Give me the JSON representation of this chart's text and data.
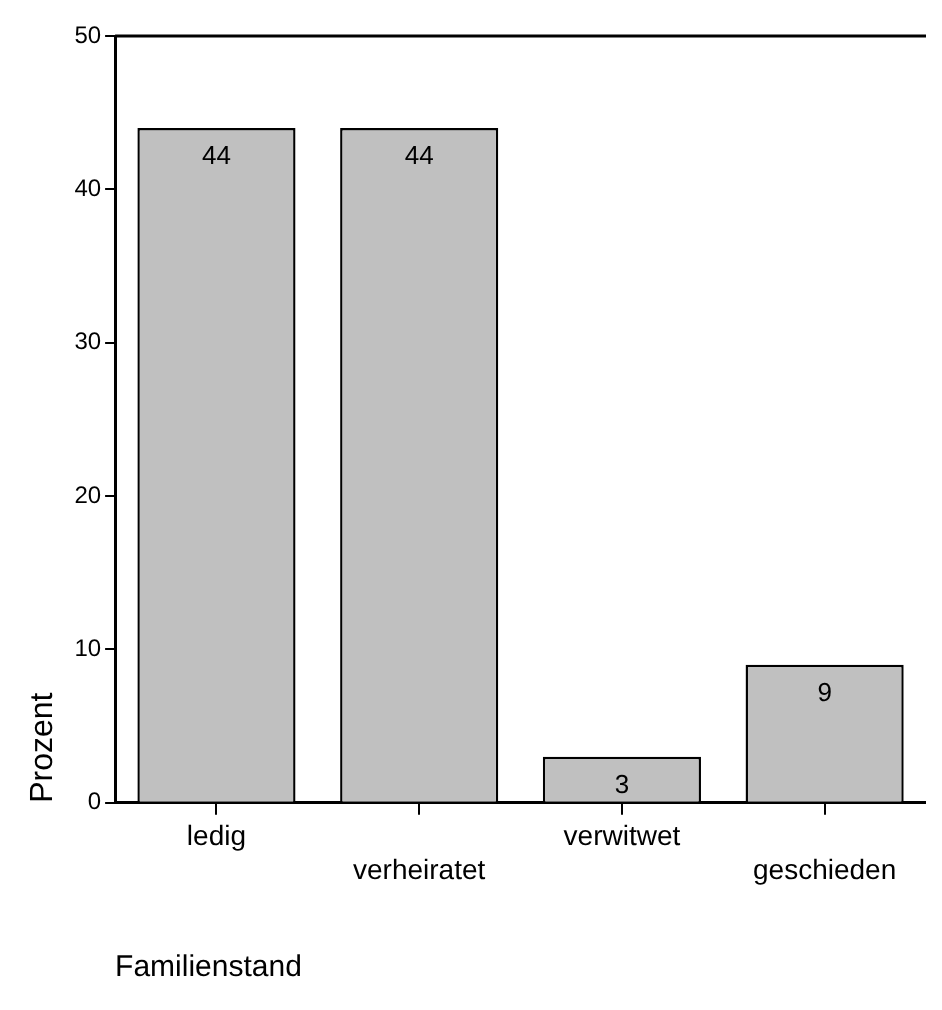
{
  "chart_data": {
    "type": "bar",
    "xlabel": "Familienstand",
    "ylabel": "Prozent",
    "categories": [
      "ledig",
      "verheiratet",
      "verwitwet",
      "geschieden"
    ],
    "values": [
      44,
      44,
      3,
      9
    ],
    "color": "#c0c0c0",
    "ylim": [
      0,
      50
    ],
    "yticks": [
      0,
      10,
      20,
      30,
      40,
      50
    ],
    "data_labels": true,
    "grid": false,
    "legend": false
  }
}
